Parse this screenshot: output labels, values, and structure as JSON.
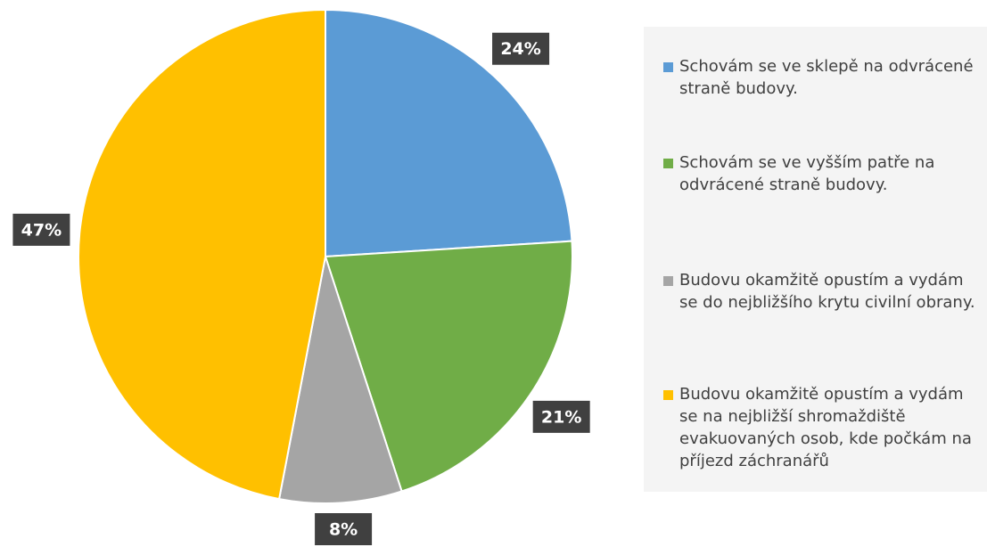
{
  "chart_data": {
    "type": "pie",
    "categories": [
      "Schovám se ve sklepě na odvrácené straně budovy.",
      "Schovám se ve vyšším patře na odvrácené straně budovy.",
      "Budovu okamžitě opustím a vydám se do nejbližšího krytu civilní obrany.",
      "Budovu okamžitě opustím a vydám se na nejbližší shromaždiště evakuovaných osob, kde počkám na příjezd záchranářů"
    ],
    "values": [
      24,
      21,
      8,
      47
    ],
    "value_labels": [
      "24%",
      "21%",
      "8%",
      "47%"
    ],
    "colors": [
      "#5b9bd5",
      "#70ad47",
      "#a5a5a5",
      "#ffc000"
    ]
  }
}
